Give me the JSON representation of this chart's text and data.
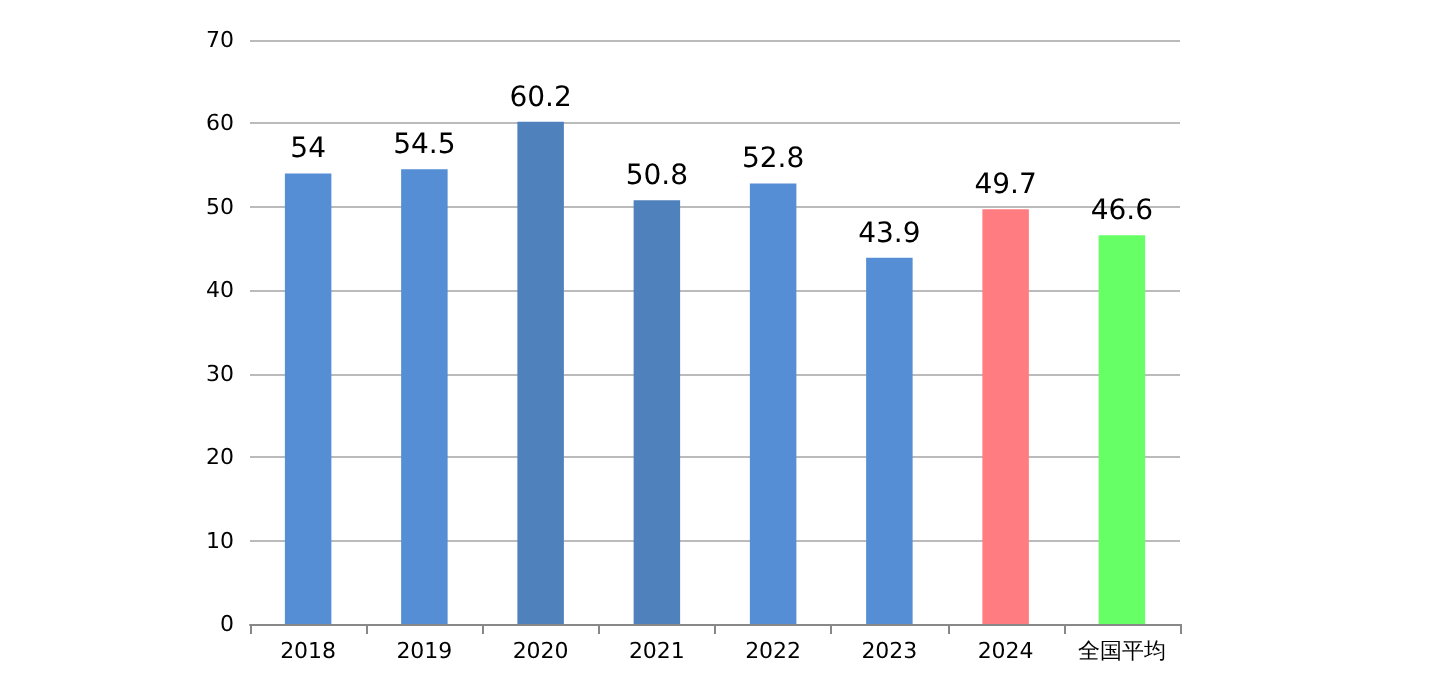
{
  "chart_data": {
    "type": "bar",
    "categories": [
      "2018",
      "2019",
      "2020",
      "2021",
      "2022",
      "2023",
      "2024",
      "全国平均"
    ],
    "values": [
      54,
      54.5,
      60.2,
      50.8,
      52.8,
      43.9,
      49.7,
      46.6
    ],
    "colors": [
      "#558ed5",
      "#558ed5",
      "#4f81bd",
      "#4f81bd",
      "#558ed5",
      "#558ed5",
      "#ff7c80",
      "#66ff66"
    ],
    "ylim": [
      0,
      70
    ],
    "yticks": [
      0,
      10,
      20,
      30,
      40,
      50,
      60,
      70
    ],
    "grid": "y",
    "data_labels": true
  }
}
